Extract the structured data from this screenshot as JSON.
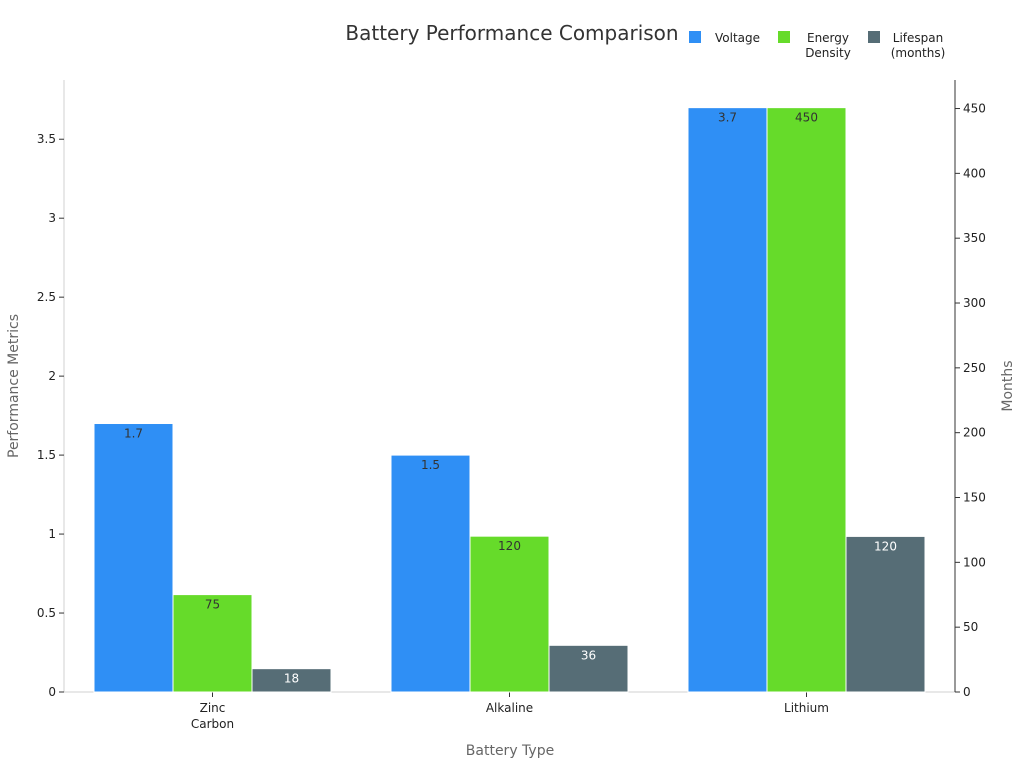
{
  "chart_data": {
    "type": "bar",
    "title": "Battery Performance Comparison",
    "xlabel": "Battery Type",
    "ylabel": "Performance Metrics",
    "y2label": "Months",
    "categories": [
      "Zinc Carbon",
      "Alkaline",
      "Lithium"
    ],
    "category_lines": [
      [
        "Zinc",
        "Carbon"
      ],
      [
        "Alkaline"
      ],
      [
        "Lithium"
      ]
    ],
    "ylim": [
      0,
      3.875
    ],
    "yticks": [
      "0",
      "0.5",
      "1",
      "1.5",
      "2",
      "2.5",
      "3",
      "3.5"
    ],
    "ytick_values": [
      0,
      0.5,
      1,
      1.5,
      2,
      2.5,
      3,
      3.5
    ],
    "y2lim": [
      0,
      472
    ],
    "y2ticks": [
      "0",
      "50",
      "100",
      "150",
      "200",
      "250",
      "300",
      "350",
      "400",
      "450"
    ],
    "y2tick_values": [
      0,
      50,
      100,
      150,
      200,
      250,
      300,
      350,
      400,
      450
    ],
    "legend_position": "top-right",
    "series": [
      {
        "name": "Voltage",
        "legend_lines": [
          "Voltage"
        ],
        "axis": "left",
        "color": "#2f8ff5",
        "values": [
          1.7,
          1.5,
          3.7
        ],
        "labels": [
          "1.7",
          "1.5",
          "3.7"
        ],
        "label_style": "dark"
      },
      {
        "name": "Energy Density",
        "legend_lines": [
          "Energy",
          "Density"
        ],
        "axis": "left-scaled",
        "color": "#66db2a",
        "values": [
          75,
          120,
          450
        ],
        "labels": [
          "75",
          "120",
          "450"
        ],
        "label_style": "dark"
      },
      {
        "name": "Lifespan (months)",
        "legend_lines": [
          "Lifespan",
          "(months)"
        ],
        "axis": "right",
        "color": "#566d76",
        "values": [
          18,
          36,
          120
        ],
        "labels": [
          "18",
          "36",
          "120"
        ],
        "label_style": "light"
      }
    ],
    "energy_density_scale_to_max": 3.7
  }
}
